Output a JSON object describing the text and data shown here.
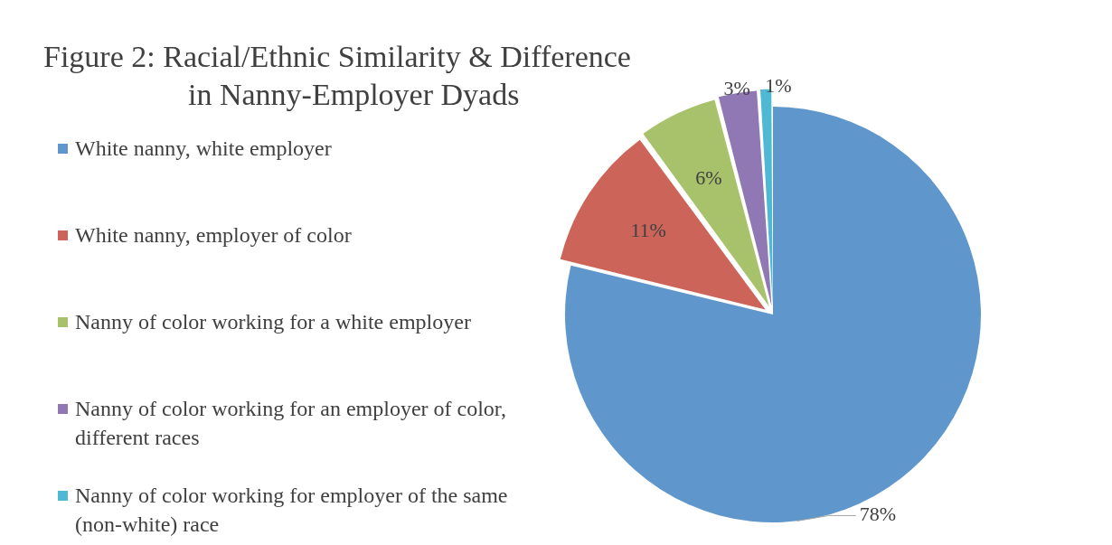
{
  "chart_data": {
    "type": "pie",
    "title": "Figure 2: Racial/Ethnic Similarity & Difference\nin Nanny-Employer Dyads",
    "categories": [
      "White nanny, white employer",
      "White nanny, employer of color",
      "Nanny of color working for a white employer",
      "Nanny of color working for an employer of color, different races",
      "Nanny of color working for employer of the same (non-white) race"
    ],
    "values": [
      78,
      11,
      6,
      3,
      1
    ],
    "colors": [
      "#5f97cc",
      "#cc645a",
      "#a7c26b",
      "#8f78b3",
      "#4fb9d3"
    ],
    "value_labels": [
      "78%",
      "11%",
      "6%",
      "3%",
      "1%"
    ],
    "legend": "left"
  }
}
